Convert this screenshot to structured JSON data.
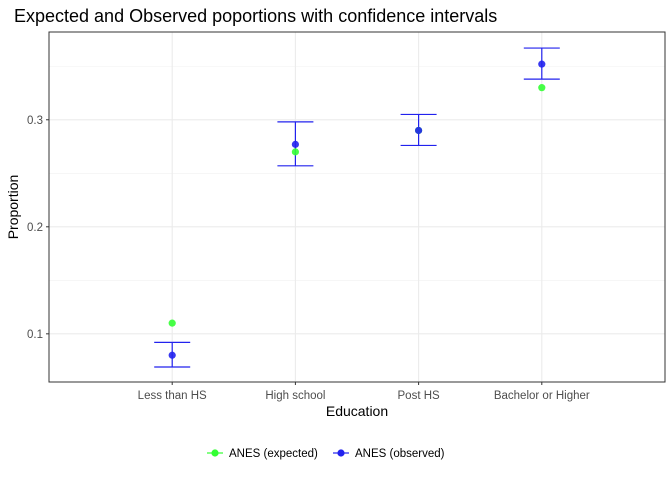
{
  "chart_data": {
    "type": "scatter",
    "title": "Expected and Observed poportions with confidence intervals",
    "xlabel": "Education",
    "ylabel": "Proportion",
    "categories": [
      "Less than HS",
      "High school",
      "Post HS",
      "Bachelor or Higher"
    ],
    "yticks": [
      0.1,
      0.2,
      0.3
    ],
    "ylim": [
      0.055,
      0.382
    ],
    "grid": true,
    "legend_position": "bottom",
    "series": [
      {
        "name": "ANES (expected)",
        "color": "#33ff33",
        "values": [
          0.11,
          0.27,
          0.29,
          0.33
        ]
      },
      {
        "name": "ANES (observed)",
        "color": "#2222ee",
        "values": [
          0.08,
          0.277,
          0.29,
          0.352
        ],
        "ci_lower": [
          0.069,
          0.257,
          0.276,
          0.338
        ],
        "ci_upper": [
          0.092,
          0.298,
          0.305,
          0.367
        ]
      }
    ]
  }
}
